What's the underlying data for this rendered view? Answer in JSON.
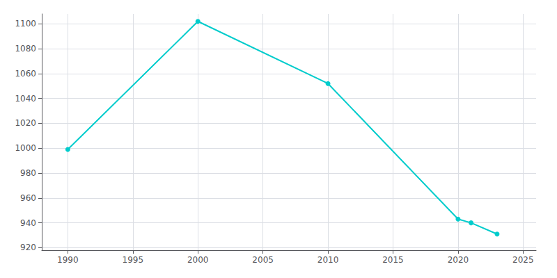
{
  "chart_data": {
    "type": "line",
    "x": [
      1990,
      2000,
      2010,
      2020,
      2021,
      2023
    ],
    "values": [
      999,
      1102,
      1052,
      943,
      940,
      931
    ],
    "color": "#00CCCC",
    "marker": "circle",
    "xlim": [
      1988,
      2026
    ],
    "ylim": [
      918,
      1108
    ],
    "xticks": [
      1990,
      1995,
      2000,
      2005,
      2010,
      2015,
      2020,
      2025
    ],
    "yticks": [
      920,
      940,
      960,
      980,
      1000,
      1020,
      1040,
      1060,
      1080,
      1100
    ],
    "grid": true
  }
}
